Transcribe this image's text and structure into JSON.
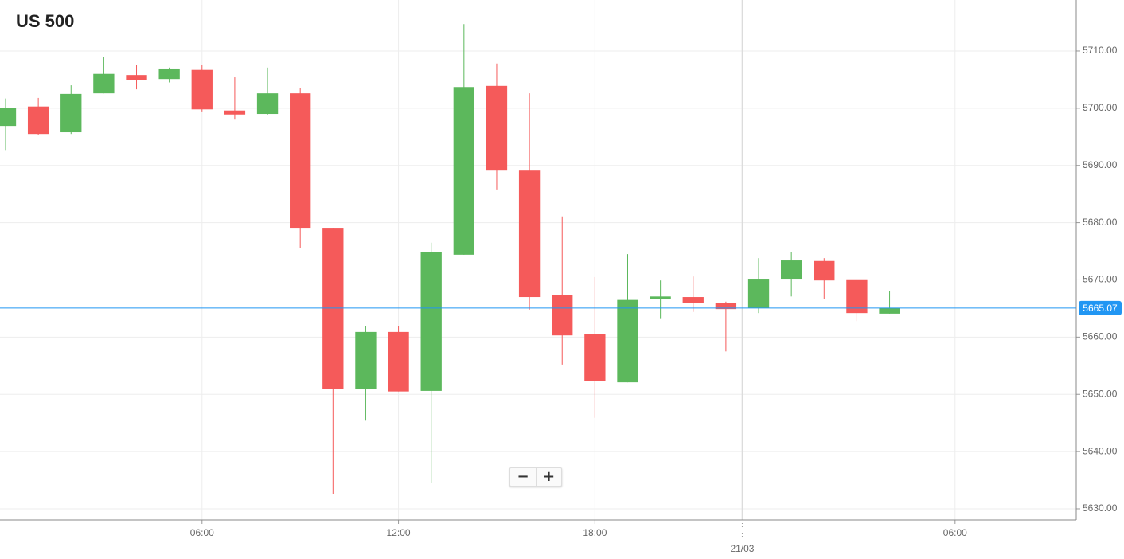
{
  "chart_data": {
    "type": "candlestick",
    "title": "US 500",
    "open": [
      5696.9,
      5700.3,
      5695.8,
      5702.6,
      5705.8,
      5705.1,
      5706.7,
      5699.6,
      5699.0,
      5702.6,
      5679.1,
      5650.9,
      5660.9,
      5650.6,
      5674.4,
      5703.9,
      5689.1,
      5667.3,
      5660.5,
      5652.1,
      5666.6,
      5667.0,
      5665.9,
      5665.1,
      5670.2,
      5673.3,
      5670.1,
      5664.1
    ],
    "high": [
      5701.7,
      5701.8,
      5704.0,
      5708.9,
      5707.6,
      5707.1,
      5707.6,
      5705.4,
      5707.1,
      5703.6,
      5679.1,
      5661.9,
      5661.9,
      5676.5,
      5714.7,
      5707.8,
      5702.6,
      5681.1,
      5670.5,
      5674.5,
      5669.9,
      5670.6,
      5666.2,
      5673.8,
      5674.8,
      5673.8,
      5670.1,
      5668.0
    ],
    "low": [
      5692.7,
      5695.3,
      5695.5,
      5702.6,
      5703.3,
      5704.5,
      5699.3,
      5698.0,
      5698.8,
      5675.5,
      5632.5,
      5645.4,
      5650.5,
      5634.5,
      5674.4,
      5685.8,
      5664.8,
      5655.2,
      5645.9,
      5652.1,
      5663.3,
      5664.4,
      5657.5,
      5664.2,
      5667.1,
      5666.7,
      5662.8,
      5664.1
    ],
    "close": [
      5700.0,
      5695.5,
      5702.5,
      5706.0,
      5704.9,
      5706.8,
      5699.8,
      5698.9,
      5702.6,
      5679.1,
      5651.0,
      5660.9,
      5650.5,
      5674.8,
      5703.7,
      5689.1,
      5667.0,
      5660.3,
      5652.3,
      5666.5,
      5667.1,
      5665.9,
      5664.9,
      5670.2,
      5673.4,
      5669.9,
      5664.2,
      5665.07
    ],
    "up_color": "#5cb85c",
    "down_color": "#f55a5a",
    "last_price": 5665.07,
    "last_price_color": "#2196f3",
    "ylim": [
      5628.05,
      5718.9
    ],
    "yticks": [
      {
        "value": 5630,
        "label": "5630.00"
      },
      {
        "value": 5640,
        "label": "5640.00"
      },
      {
        "value": 5650,
        "label": "5650.00"
      },
      {
        "value": 5660,
        "label": "5660.00"
      },
      {
        "value": 5670,
        "label": "5670.00"
      },
      {
        "value": 5680,
        "label": "5680.00"
      },
      {
        "value": 5690,
        "label": "5690.00"
      },
      {
        "value": 5700,
        "label": "5700.00"
      },
      {
        "value": 5710,
        "label": "5710.00"
      }
    ],
    "xlim": [
      -0.17,
      32.7
    ],
    "xticks": [
      {
        "value": 6,
        "label": "06:00"
      },
      {
        "value": 12,
        "label": "12:00"
      },
      {
        "value": 18,
        "label": "18:00"
      },
      {
        "value": 29,
        "label": "06:00"
      }
    ],
    "day_ticks": [
      {
        "value": 22.5,
        "label": "21/03"
      }
    ],
    "grid": true
  },
  "zoom_controls": [
    "−",
    "+"
  ]
}
